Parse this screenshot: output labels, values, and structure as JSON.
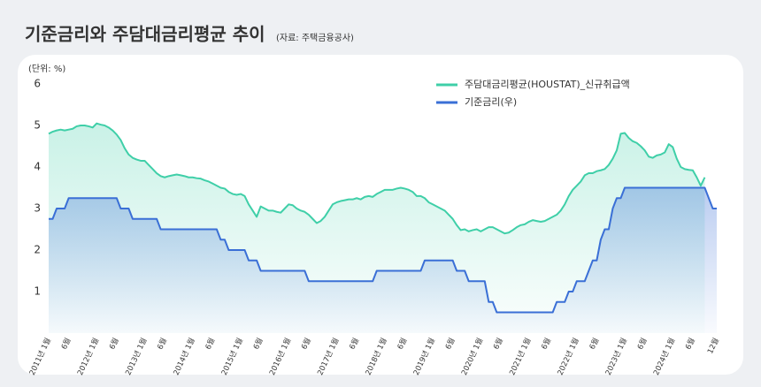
{
  "chart_data": {
    "type": "line",
    "title": "기준금리와 주담대금리평균 추이",
    "subtitle": "(자료: 주택금융공사)",
    "y_label": "(단위: %)",
    "categories": [
      "2011년 1월",
      null,
      null,
      null,
      null,
      "6월",
      null,
      null,
      null,
      null,
      null,
      null,
      "2012년 1월",
      null,
      null,
      null,
      null,
      "6월",
      null,
      null,
      null,
      null,
      null,
      null,
      "2013년 1월",
      null,
      null,
      null,
      null,
      "6월",
      null,
      null,
      null,
      null,
      null,
      null,
      "2014년 1월",
      null,
      null,
      null,
      null,
      "6월",
      null,
      null,
      null,
      null,
      null,
      null,
      "2015년 1월",
      null,
      null,
      null,
      null,
      "6월",
      null,
      null,
      null,
      null,
      null,
      null,
      "2016년 1월",
      null,
      null,
      null,
      null,
      "6월",
      null,
      null,
      null,
      null,
      null,
      null,
      "2017년 1월",
      null,
      null,
      null,
      null,
      "6월",
      null,
      null,
      null,
      null,
      null,
      null,
      "2018년 1월",
      null,
      null,
      null,
      null,
      "6월",
      null,
      null,
      null,
      null,
      null,
      null,
      "2019년 1월",
      null,
      null,
      null,
      null,
      "6월",
      null,
      null,
      null,
      null,
      null,
      null,
      "2020년 1월",
      null,
      null,
      null,
      null,
      "6월",
      null,
      null,
      null,
      null,
      null,
      null,
      "2021년 1월",
      null,
      null,
      null,
      null,
      "6월",
      null,
      null,
      null,
      null,
      null,
      null,
      "2022년 1월",
      null,
      null,
      null,
      null,
      "6월",
      null,
      null,
      null,
      null,
      null,
      null,
      "2023년 1월",
      null,
      null,
      null,
      null,
      "6월",
      null,
      null,
      null,
      null,
      null,
      null,
      "2024년 1월",
      null,
      null,
      null,
      null,
      "6월",
      null,
      null,
      null,
      null,
      null,
      "12월"
    ],
    "series": [
      {
        "name": "주담대금리평균(HOUSTAT)_신규취급액",
        "color": "#3fcfa8",
        "values": [
          4.8,
          4.85,
          4.88,
          4.9,
          4.88,
          4.9,
          4.92,
          4.98,
          5.0,
          5.0,
          4.98,
          4.95,
          5.05,
          5.02,
          5.0,
          4.95,
          4.88,
          4.78,
          4.65,
          4.45,
          4.3,
          4.22,
          4.18,
          4.15,
          4.15,
          4.05,
          3.95,
          3.85,
          3.78,
          3.75,
          3.78,
          3.8,
          3.82,
          3.8,
          3.78,
          3.75,
          3.75,
          3.73,
          3.72,
          3.68,
          3.65,
          3.6,
          3.55,
          3.5,
          3.48,
          3.4,
          3.35,
          3.33,
          3.35,
          3.3,
          3.1,
          2.95,
          2.8,
          3.05,
          3.0,
          2.95,
          2.95,
          2.92,
          2.9,
          3.0,
          3.1,
          3.08,
          3.0,
          2.95,
          2.92,
          2.85,
          2.75,
          2.65,
          2.7,
          2.8,
          2.95,
          3.1,
          3.15,
          3.18,
          3.2,
          3.22,
          3.22,
          3.25,
          3.22,
          3.28,
          3.3,
          3.28,
          3.35,
          3.4,
          3.45,
          3.45,
          3.45,
          3.48,
          3.5,
          3.48,
          3.45,
          3.4,
          3.3,
          3.3,
          3.25,
          3.15,
          3.1,
          3.05,
          3.0,
          2.95,
          2.85,
          2.75,
          2.6,
          2.48,
          2.5,
          2.45,
          2.48,
          2.5,
          2.45,
          2.5,
          2.55,
          2.55,
          2.5,
          2.45,
          2.4,
          2.42,
          2.48,
          2.55,
          2.6,
          2.62,
          2.68,
          2.72,
          2.7,
          2.68,
          2.7,
          2.75,
          2.8,
          2.85,
          2.95,
          3.1,
          3.3,
          3.45,
          3.55,
          3.65,
          3.8,
          3.85,
          3.85,
          3.9,
          3.92,
          3.95,
          4.05,
          4.2,
          4.4,
          4.8,
          4.82,
          4.7,
          4.62,
          4.58,
          4.5,
          4.4,
          4.25,
          4.22,
          4.28,
          4.3,
          4.35,
          4.55,
          4.48,
          4.2,
          4.0,
          3.95,
          3.93,
          3.92,
          3.75,
          3.55,
          3.75,
          null,
          null,
          null
        ]
      },
      {
        "name": "기준금리(우)",
        "color": "#3a6fd6",
        "values": [
          2.75,
          2.75,
          3.0,
          3.0,
          3.0,
          3.25,
          3.25,
          3.25,
          3.25,
          3.25,
          3.25,
          3.25,
          3.25,
          3.25,
          3.25,
          3.25,
          3.25,
          3.25,
          3.0,
          3.0,
          3.0,
          2.75,
          2.75,
          2.75,
          2.75,
          2.75,
          2.75,
          2.75,
          2.5,
          2.5,
          2.5,
          2.5,
          2.5,
          2.5,
          2.5,
          2.5,
          2.5,
          2.5,
          2.5,
          2.5,
          2.5,
          2.5,
          2.5,
          2.25,
          2.25,
          2.0,
          2.0,
          2.0,
          2.0,
          2.0,
          1.75,
          1.75,
          1.75,
          1.5,
          1.5,
          1.5,
          1.5,
          1.5,
          1.5,
          1.5,
          1.5,
          1.5,
          1.5,
          1.5,
          1.5,
          1.25,
          1.25,
          1.25,
          1.25,
          1.25,
          1.25,
          1.25,
          1.25,
          1.25,
          1.25,
          1.25,
          1.25,
          1.25,
          1.25,
          1.25,
          1.25,
          1.25,
          1.5,
          1.5,
          1.5,
          1.5,
          1.5,
          1.5,
          1.5,
          1.5,
          1.5,
          1.5,
          1.5,
          1.5,
          1.75,
          1.75,
          1.75,
          1.75,
          1.75,
          1.75,
          1.75,
          1.75,
          1.5,
          1.5,
          1.5,
          1.25,
          1.25,
          1.25,
          1.25,
          1.25,
          0.75,
          0.75,
          0.5,
          0.5,
          0.5,
          0.5,
          0.5,
          0.5,
          0.5,
          0.5,
          0.5,
          0.5,
          0.5,
          0.5,
          0.5,
          0.5,
          0.5,
          0.75,
          0.75,
          0.75,
          1.0,
          1.0,
          1.25,
          1.25,
          1.25,
          1.5,
          1.75,
          1.75,
          2.25,
          2.5,
          2.5,
          3.0,
          3.25,
          3.25,
          3.5,
          3.5,
          3.5,
          3.5,
          3.5,
          3.5,
          3.5,
          3.5,
          3.5,
          3.5,
          3.5,
          3.5,
          3.5,
          3.5,
          3.5,
          3.5,
          3.5,
          3.5,
          3.5,
          3.5,
          3.5,
          3.25,
          3.0,
          3.0
        ]
      }
    ],
    "ylim": [
      0,
      6
    ],
    "yticks": [
      1,
      2,
      3,
      4,
      5,
      6
    ],
    "grid": false,
    "legend": "upper right"
  }
}
